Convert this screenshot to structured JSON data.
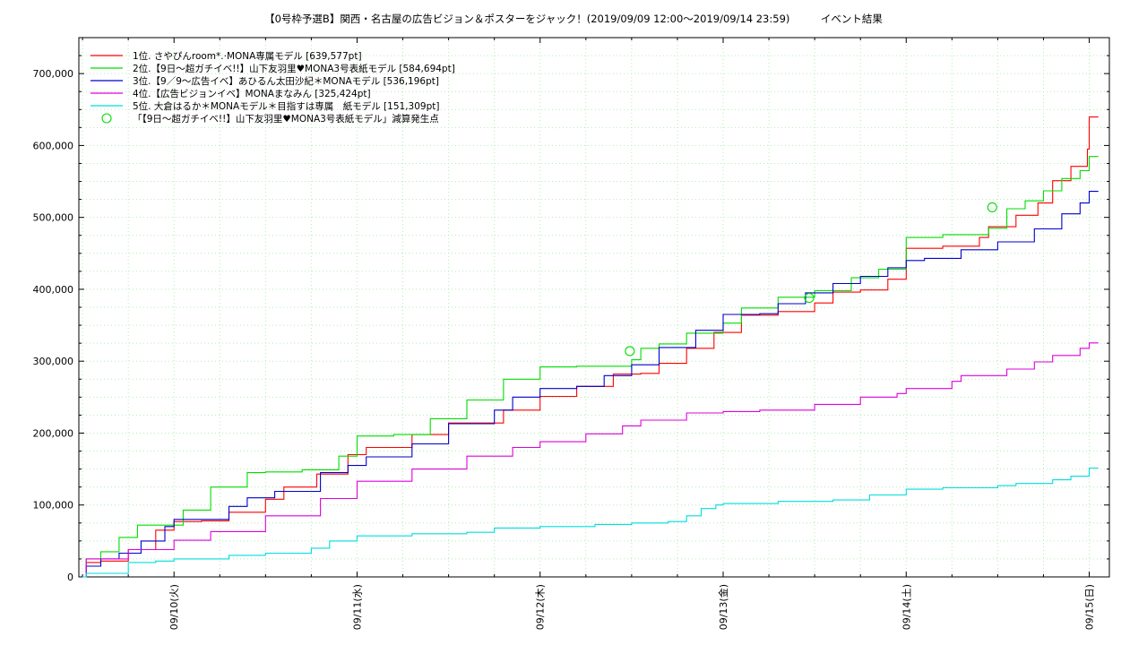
{
  "chart_data": {
    "type": "line",
    "title": "【0号枠予選B】関西・名古屋の広告ビジョン＆ポスターをジャック！(2019/09/09 12:00〜2019/09/14 23:59)　　　イベント結果",
    "xlabel": "",
    "ylabel": "",
    "x_unit": "days since 2019/09/09 00:00",
    "xlim": [
      0.48,
      6.11
    ],
    "ylim": [
      0,
      750000
    ],
    "x_ticks": [
      {
        "x": 1,
        "label": "09/10(火)"
      },
      {
        "x": 2,
        "label": "09/11(水)"
      },
      {
        "x": 3,
        "label": "09/12(木)"
      },
      {
        "x": 4,
        "label": "09/13(金)"
      },
      {
        "x": 5,
        "label": "09/14(土)"
      },
      {
        "x": 6,
        "label": "09/15(日)"
      }
    ],
    "y_ticks": [
      {
        "y": 0,
        "label": "0"
      },
      {
        "y": 100000,
        "label": "100,000"
      },
      {
        "y": 200000,
        "label": "200,000"
      },
      {
        "y": 300000,
        "label": "300,000"
      },
      {
        "y": 400000,
        "label": "400,000"
      },
      {
        "y": 500000,
        "label": "500,000"
      },
      {
        "y": 600000,
        "label": "600,000"
      },
      {
        "y": 700000,
        "label": "700,000"
      }
    ],
    "grid": true,
    "legend_position": "top-left",
    "series": [
      {
        "name": "1位. さやぴんroom*.·MONA専属モデル [639,577pt]",
        "color": "#ff0000",
        "x": [
          0.5,
          0.52,
          0.6,
          0.75,
          0.9,
          1.0,
          1.15,
          1.3,
          1.5,
          1.6,
          1.78,
          1.95,
          2.05,
          2.3,
          2.5,
          2.8,
          3.0,
          3.2,
          3.4,
          3.55,
          3.65,
          3.8,
          3.95,
          4.1,
          4.3,
          4.5,
          4.6,
          4.75,
          4.9,
          5.0,
          5.2,
          5.4,
          5.45,
          5.6,
          5.72,
          5.8,
          5.9,
          5.99,
          6.0,
          6.05
        ],
        "y": [
          0,
          20000,
          22000,
          38000,
          65000,
          77000,
          78000,
          90000,
          108000,
          125000,
          143000,
          170000,
          180000,
          198000,
          214000,
          232000,
          251000,
          265000,
          282000,
          283000,
          297000,
          318000,
          340000,
          364000,
          369000,
          381000,
          396000,
          399000,
          414000,
          457000,
          460000,
          472000,
          487000,
          503000,
          520000,
          551000,
          571000,
          595000,
          639577,
          639577
        ]
      },
      {
        "name": "2位.【9日〜超ガチイベ!!】山下友羽里♥MONA3号表紙モデル [584,694pt]",
        "color": "#00dd00",
        "x": [
          0.5,
          0.52,
          0.6,
          0.7,
          0.8,
          1.05,
          1.2,
          1.4,
          1.5,
          1.7,
          1.9,
          2.0,
          2.2,
          2.4,
          2.6,
          2.8,
          3.0,
          3.2,
          3.5,
          3.55,
          3.65,
          3.8,
          4.0,
          4.1,
          4.3,
          4.5,
          4.7,
          4.85,
          5.0,
          5.2,
          5.45,
          5.55,
          5.65,
          5.75,
          5.85,
          5.95,
          6.0,
          6.05
        ],
        "y": [
          0,
          25000,
          35000,
          55000,
          72000,
          93000,
          125000,
          145000,
          146000,
          149000,
          168000,
          196000,
          198000,
          220000,
          246000,
          275000,
          292000,
          293000,
          302000,
          318000,
          324000,
          339000,
          353000,
          374000,
          389000,
          398000,
          416000,
          428000,
          472000,
          476000,
          485000,
          512000,
          523000,
          537000,
          554000,
          565000,
          584694,
          584694
        ]
      },
      {
        "name": "3位.【9／9〜広告イベ】あひるん太田沙紀＊MONAモデル [536,196pt]",
        "color": "#0000cc",
        "x": [
          0.5,
          0.52,
          0.6,
          0.7,
          0.82,
          0.95,
          1.0,
          1.3,
          1.4,
          1.55,
          1.8,
          1.95,
          2.05,
          2.3,
          2.5,
          2.75,
          2.85,
          3.0,
          3.2,
          3.35,
          3.5,
          3.65,
          3.85,
          4.0,
          4.2,
          4.3,
          4.45,
          4.6,
          4.75,
          4.9,
          5.0,
          5.1,
          5.3,
          5.5,
          5.7,
          5.85,
          5.95,
          6.0,
          6.05
        ],
        "y": [
          0,
          15000,
          25000,
          33000,
          50000,
          70000,
          80000,
          98000,
          110000,
          119000,
          145000,
          155000,
          167000,
          185000,
          213000,
          232000,
          250000,
          262000,
          265000,
          280000,
          295000,
          319000,
          343000,
          365000,
          366000,
          380000,
          395000,
          408000,
          418000,
          430000,
          440000,
          443000,
          455000,
          466000,
          484000,
          505000,
          520000,
          536196,
          536196
        ]
      },
      {
        "name": "4位.【広告ビジョンイベ】MONAまなみん [325,424pt]",
        "color": "#dd00dd",
        "x": [
          0.5,
          0.52,
          0.75,
          1.0,
          1.2,
          1.5,
          1.8,
          2.0,
          2.3,
          2.6,
          2.85,
          3.0,
          3.25,
          3.45,
          3.55,
          3.8,
          4.0,
          4.2,
          4.5,
          4.75,
          4.95,
          5.0,
          5.25,
          5.3,
          5.55,
          5.7,
          5.8,
          5.95,
          6.0,
          6.05
        ],
        "y": [
          0,
          25000,
          38000,
          51000,
          63000,
          85000,
          109000,
          133000,
          150000,
          168000,
          180000,
          188000,
          199000,
          210000,
          218000,
          228000,
          230000,
          232000,
          240000,
          250000,
          255000,
          262000,
          272000,
          280000,
          289000,
          299000,
          308000,
          318000,
          325424,
          325424
        ]
      },
      {
        "name": "5位. 大倉はるか＊MONAモデル＊目指すは専属　紙モデル [151,309pt]",
        "color": "#00dddd",
        "x": [
          0.5,
          0.52,
          0.75,
          0.9,
          1.0,
          1.3,
          1.5,
          1.75,
          1.85,
          2.0,
          2.3,
          2.6,
          2.75,
          3.0,
          3.3,
          3.5,
          3.7,
          3.8,
          3.88,
          3.96,
          4.0,
          4.3,
          4.6,
          4.8,
          5.0,
          5.2,
          5.5,
          5.6,
          5.8,
          5.9,
          6.0,
          6.05
        ],
        "y": [
          0,
          5000,
          20000,
          22000,
          25000,
          30000,
          33000,
          40000,
          50000,
          57000,
          60000,
          62000,
          68000,
          70000,
          73000,
          75000,
          77000,
          85000,
          95000,
          100000,
          102000,
          105000,
          107000,
          114000,
          122000,
          124000,
          127000,
          130000,
          135000,
          140000,
          151309,
          151309
        ]
      }
    ],
    "markers": {
      "name": "「【9日〜超ガチイベ!!】山下友羽里♥MONA3号表紙モデル」減算発生点",
      "color": "#00dd00",
      "points": [
        {
          "x": 3.49,
          "y": 314000
        },
        {
          "x": 4.47,
          "y": 388000
        },
        {
          "x": 5.47,
          "y": 514000
        }
      ]
    }
  }
}
